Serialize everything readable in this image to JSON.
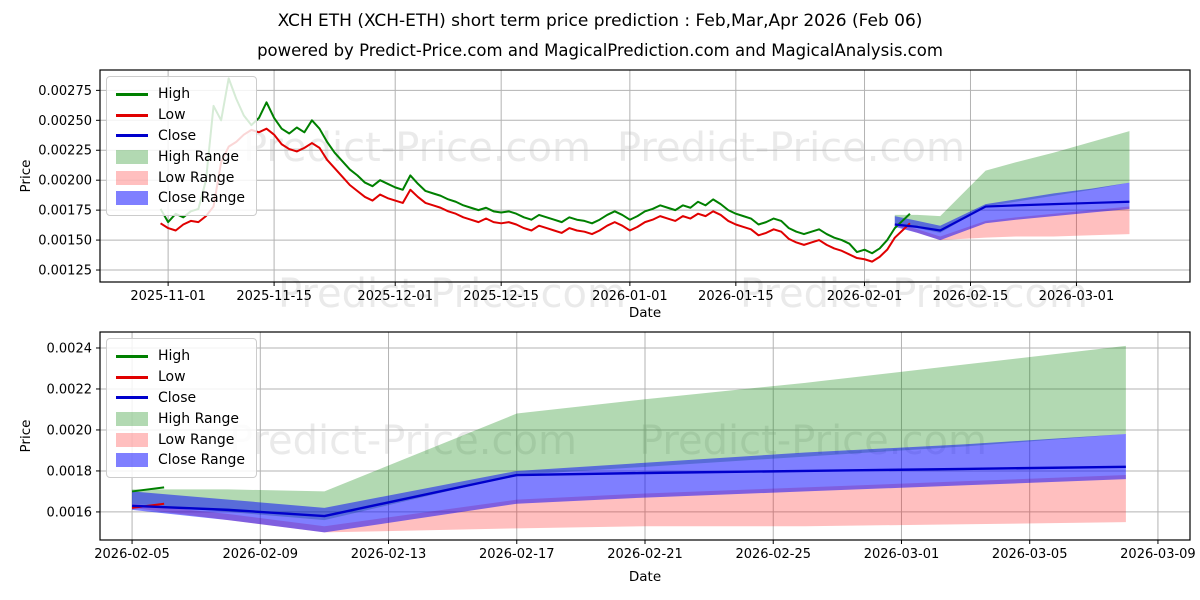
{
  "header": {
    "title": "XCH ETH (XCH-ETH) short term price prediction : Feb,Mar,Apr 2026 (Feb 06)",
    "subtitle": "powered by Predict-Price.com and MagicalPrediction.com and MagicalAnalysis.com"
  },
  "watermark": {
    "text": "Predict-Price.com"
  },
  "legend": {
    "items": [
      {
        "label": "High",
        "swatch": "line",
        "color": "#008000"
      },
      {
        "label": "Low",
        "swatch": "line",
        "color": "#e00000"
      },
      {
        "label": "Close",
        "swatch": "line",
        "color": "#0000cc"
      },
      {
        "label": "High Range",
        "swatch": "patch",
        "color": "rgba(0,128,0,0.3)"
      },
      {
        "label": "Low Range",
        "swatch": "patch",
        "color": "rgba(255,0,0,0.25)"
      },
      {
        "label": "Close Range",
        "swatch": "patch",
        "color": "rgba(0,0,255,0.5)"
      }
    ]
  },
  "colors": {
    "grid": "#b3b3b3",
    "axis": "#000000",
    "high_line": "#008000",
    "low_line": "#e00000",
    "close_line": "#0000cc",
    "high_band": "rgba(0,128,0,0.3)",
    "low_band": "rgba(255,0,0,0.25)",
    "close_band": "rgba(0,0,255,0.5)"
  },
  "chart_data": [
    {
      "name": "price-history-with-forecast",
      "type": "line",
      "xlabel": "Date",
      "ylabel": "Price",
      "grid": true,
      "legend_position": "upper left",
      "x_range": [
        "2025-10-23",
        "2026-03-16"
      ],
      "y_range": [
        0.00115,
        0.00292
      ],
      "x_ticks": [
        "2025-11-01",
        "2025-11-15",
        "2025-12-01",
        "2025-12-15",
        "2026-01-01",
        "2026-01-15",
        "2026-02-01",
        "2026-02-15",
        "2026-03-01"
      ],
      "y_ticks": [
        0.00125,
        0.0015,
        0.00175,
        0.002,
        0.00225,
        0.0025,
        0.00275
      ],
      "y_tick_labels": [
        "0.00125",
        "0.00150",
        "0.00175",
        "0.00200",
        "0.00225",
        "0.00250",
        "0.00275"
      ],
      "series": [
        {
          "name": "High",
          "color": "#008000",
          "width": 2,
          "x_start": "2025-10-31",
          "y": [
            0.00176,
            0.00165,
            0.00172,
            0.00169,
            0.00174,
            0.00176,
            0.002,
            0.00262,
            0.0025,
            0.00285,
            0.00268,
            0.00254,
            0.00246,
            0.00252,
            0.00265,
            0.00252,
            0.00243,
            0.00239,
            0.00244,
            0.0024,
            0.0025,
            0.00243,
            0.00232,
            0.00223,
            0.00216,
            0.00209,
            0.00204,
            0.00198,
            0.00195,
            0.002,
            0.00197,
            0.00194,
            0.00192,
            0.00204,
            0.00197,
            0.00191,
            0.00189,
            0.00187,
            0.00184,
            0.00182,
            0.00179,
            0.00177,
            0.00175,
            0.00177,
            0.00174,
            0.00173,
            0.00174,
            0.00172,
            0.00169,
            0.00167,
            0.00171,
            0.00169,
            0.00167,
            0.00165,
            0.00169,
            0.00167,
            0.00166,
            0.00164,
            0.00167,
            0.00171,
            0.00174,
            0.00171,
            0.00167,
            0.0017,
            0.00174,
            0.00176,
            0.00179,
            0.00177,
            0.00175,
            0.00179,
            0.00177,
            0.00182,
            0.00179,
            0.00184,
            0.0018,
            0.00175,
            0.00172,
            0.0017,
            0.00168,
            0.00163,
            0.00165,
            0.00168,
            0.00166,
            0.0016,
            0.00157,
            0.00155,
            0.00157,
            0.00159,
            0.00155,
            0.00152,
            0.0015,
            0.00147,
            0.0014,
            0.00142,
            0.00139,
            0.00143,
            0.0015,
            0.0016,
            0.00166,
            0.00172
          ]
        },
        {
          "name": "Low",
          "color": "#e00000",
          "width": 2,
          "x_start": "2025-10-31",
          "y": [
            0.00164,
            0.0016,
            0.00158,
            0.00163,
            0.00166,
            0.00165,
            0.0017,
            0.00178,
            0.00215,
            0.00228,
            0.00232,
            0.00238,
            0.00242,
            0.0024,
            0.00243,
            0.00238,
            0.0023,
            0.00226,
            0.00224,
            0.00227,
            0.00231,
            0.00227,
            0.00217,
            0.0021,
            0.00203,
            0.00196,
            0.00191,
            0.00186,
            0.00183,
            0.00188,
            0.00185,
            0.00183,
            0.00181,
            0.00192,
            0.00186,
            0.00181,
            0.00179,
            0.00177,
            0.00174,
            0.00172,
            0.00169,
            0.00167,
            0.00165,
            0.00168,
            0.00165,
            0.00164,
            0.00165,
            0.00163,
            0.0016,
            0.00158,
            0.00162,
            0.0016,
            0.00158,
            0.00156,
            0.0016,
            0.00158,
            0.00157,
            0.00155,
            0.00158,
            0.00162,
            0.00165,
            0.00162,
            0.00158,
            0.00161,
            0.00165,
            0.00167,
            0.0017,
            0.00168,
            0.00166,
            0.0017,
            0.00168,
            0.00172,
            0.0017,
            0.00174,
            0.00171,
            0.00166,
            0.00163,
            0.00161,
            0.00159,
            0.00154,
            0.00156,
            0.00159,
            0.00157,
            0.00151,
            0.00148,
            0.00146,
            0.00148,
            0.0015,
            0.00146,
            0.00143,
            0.00141,
            0.00138,
            0.00135,
            0.00134,
            0.00132,
            0.00136,
            0.00142,
            0.00152,
            0.00158,
            0.00164
          ]
        },
        {
          "name": "Close",
          "color": "#0000cc",
          "width": 2.2,
          "x": [
            "2026-02-05",
            "2026-02-08",
            "2026-02-11",
            "2026-02-17",
            "2026-02-21",
            "2026-02-26",
            "2026-03-03",
            "2026-03-08"
          ],
          "y": [
            0.00163,
            0.00161,
            0.00158,
            0.00178,
            0.00179,
            0.0018,
            0.00181,
            0.00182
          ]
        }
      ],
      "bands": [
        {
          "name": "High Range",
          "color": "rgba(0,128,0,0.3)",
          "x": [
            "2026-02-05",
            "2026-02-08",
            "2026-02-11",
            "2026-02-17",
            "2026-02-21",
            "2026-02-26",
            "2026-03-03",
            "2026-03-08"
          ],
          "upper": [
            0.00171,
            0.00171,
            0.0017,
            0.00208,
            0.00215,
            0.00223,
            0.00232,
            0.00241
          ],
          "lower": [
            0.00164,
            0.0016,
            0.00156,
            0.00178,
            0.00182,
            0.00187,
            0.00192,
            0.00198
          ]
        },
        {
          "name": "Low Range",
          "color": "rgba(255,0,0,0.25)",
          "x": [
            "2026-02-05",
            "2026-02-08",
            "2026-02-11",
            "2026-02-17",
            "2026-02-21",
            "2026-02-26",
            "2026-03-03",
            "2026-03-08"
          ],
          "upper": [
            0.00164,
            0.00159,
            0.00153,
            0.00166,
            0.00169,
            0.00172,
            0.00175,
            0.00178
          ],
          "lower": [
            0.00162,
            0.00156,
            0.0015,
            0.00152,
            0.00153,
            0.00153,
            0.00154,
            0.00155
          ]
        },
        {
          "name": "Close Range",
          "color": "rgba(0,0,255,0.5)",
          "x": [
            "2026-02-05",
            "2026-02-08",
            "2026-02-11",
            "2026-02-17",
            "2026-02-21",
            "2026-02-26",
            "2026-03-03",
            "2026-03-08"
          ],
          "upper": [
            0.0017,
            0.00166,
            0.00162,
            0.0018,
            0.00184,
            0.00189,
            0.00193,
            0.00198
          ],
          "lower": [
            0.00161,
            0.00156,
            0.0015,
            0.00164,
            0.00167,
            0.0017,
            0.00173,
            0.00176
          ]
        }
      ]
    },
    {
      "name": "forecast-detail",
      "type": "line",
      "xlabel": "Date",
      "ylabel": "Price",
      "grid": true,
      "legend_position": "upper left",
      "x_range": [
        "2026-02-04",
        "2026-03-10"
      ],
      "y_range": [
        0.001463,
        0.002478
      ],
      "x_ticks": [
        "2026-02-05",
        "2026-02-09",
        "2026-02-13",
        "2026-02-17",
        "2026-02-21",
        "2026-02-25",
        "2026-03-01",
        "2026-03-05",
        "2026-03-09"
      ],
      "y_ticks": [
        0.0016,
        0.0018,
        0.002,
        0.0022,
        0.0024
      ],
      "y_tick_labels": [
        "0.0016",
        "0.0018",
        "0.0020",
        "0.0022",
        "0.0024"
      ],
      "series": [
        {
          "name": "High",
          "color": "#008000",
          "width": 2,
          "x": [
            "2026-02-05",
            "2026-02-06"
          ],
          "y": [
            0.0017,
            0.00172
          ]
        },
        {
          "name": "Low",
          "color": "#e00000",
          "width": 2,
          "x": [
            "2026-02-05",
            "2026-02-06"
          ],
          "y": [
            0.00162,
            0.00164
          ]
        },
        {
          "name": "Close",
          "color": "#0000cc",
          "width": 2.4,
          "x": [
            "2026-02-05",
            "2026-02-08",
            "2026-02-11",
            "2026-02-17",
            "2026-02-21",
            "2026-02-26",
            "2026-03-03",
            "2026-03-08"
          ],
          "y": [
            0.00163,
            0.00161,
            0.00158,
            0.00178,
            0.00179,
            0.0018,
            0.00181,
            0.00182
          ]
        }
      ],
      "bands": [
        {
          "name": "High Range",
          "color": "rgba(0,128,0,0.3)",
          "x": [
            "2026-02-05",
            "2026-02-08",
            "2026-02-11",
            "2026-02-17",
            "2026-02-21",
            "2026-02-26",
            "2026-03-03",
            "2026-03-08"
          ],
          "upper": [
            0.00171,
            0.00171,
            0.0017,
            0.00208,
            0.00215,
            0.00223,
            0.00232,
            0.00241
          ],
          "lower": [
            0.00164,
            0.0016,
            0.00156,
            0.00178,
            0.00182,
            0.00187,
            0.00192,
            0.00198
          ]
        },
        {
          "name": "Low Range",
          "color": "rgba(255,0,0,0.25)",
          "x": [
            "2026-02-05",
            "2026-02-08",
            "2026-02-11",
            "2026-02-17",
            "2026-02-21",
            "2026-02-26",
            "2026-03-03",
            "2026-03-08"
          ],
          "upper": [
            0.00164,
            0.00159,
            0.00153,
            0.00166,
            0.00169,
            0.00172,
            0.00175,
            0.00178
          ],
          "lower": [
            0.00162,
            0.00156,
            0.0015,
            0.00152,
            0.00153,
            0.00153,
            0.00154,
            0.00155
          ]
        },
        {
          "name": "Close Range",
          "color": "rgba(0,0,255,0.5)",
          "x": [
            "2026-02-05",
            "2026-02-08",
            "2026-02-11",
            "2026-02-17",
            "2026-02-21",
            "2026-02-26",
            "2026-03-03",
            "2026-03-08"
          ],
          "upper": [
            0.0017,
            0.00166,
            0.00162,
            0.0018,
            0.00184,
            0.00189,
            0.00193,
            0.00198
          ],
          "lower": [
            0.00161,
            0.00156,
            0.0015,
            0.00164,
            0.00167,
            0.0017,
            0.00173,
            0.00176
          ]
        }
      ]
    }
  ]
}
